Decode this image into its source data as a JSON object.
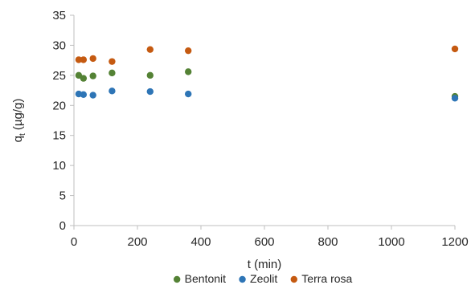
{
  "chart_data": {
    "type": "scatter",
    "title": "",
    "xlabel": "t (min)",
    "ylabel_main": "q",
    "ylabel_sub": "t",
    "ylabel_unit": " (µg/g)",
    "xlim": [
      0,
      1200
    ],
    "ylim": [
      0,
      35
    ],
    "xticks": [
      0,
      200,
      400,
      600,
      800,
      1000,
      1200
    ],
    "yticks": [
      0,
      5,
      10,
      15,
      20,
      25,
      30,
      35
    ],
    "grid": false,
    "legend_position": "bottom",
    "series": [
      {
        "name": "Bentonit",
        "color": "#548235",
        "x": [
          15,
          30,
          60,
          120,
          240,
          360,
          1200
        ],
        "y": [
          25.0,
          24.5,
          24.9,
          25.4,
          25.0,
          25.6,
          21.5
        ]
      },
      {
        "name": "Zeolit",
        "color": "#2e75b6",
        "x": [
          15,
          30,
          60,
          120,
          240,
          360,
          1200
        ],
        "y": [
          21.9,
          21.8,
          21.7,
          22.4,
          22.3,
          21.9,
          21.2
        ]
      },
      {
        "name": "Terra rosa",
        "color": "#c55a11",
        "x": [
          15,
          30,
          60,
          120,
          240,
          360,
          1200
        ],
        "y": [
          27.6,
          27.6,
          27.8,
          27.3,
          29.3,
          29.1,
          29.4
        ]
      }
    ]
  }
}
